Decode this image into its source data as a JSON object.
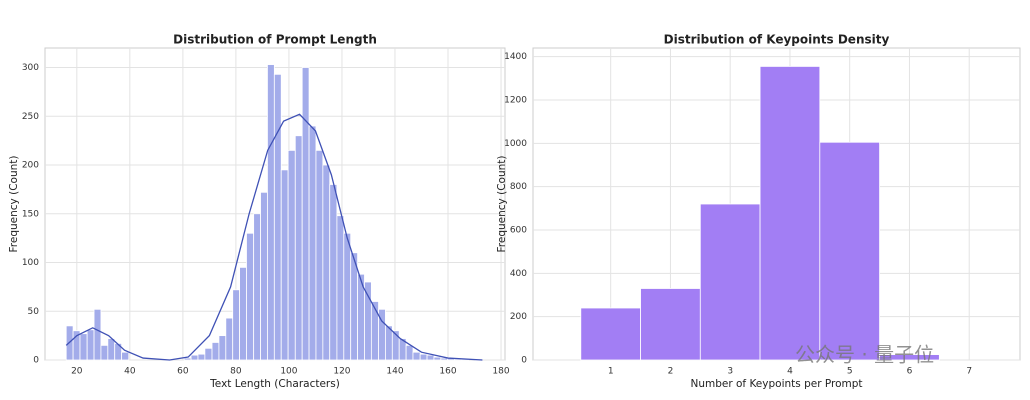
{
  "chart_data": [
    {
      "type": "histogram",
      "title": "Distribution of Prompt Length",
      "xlabel": "Text Length (Characters)",
      "ylabel": "Frequency (Count)",
      "bins": [
        16.0,
        18.6,
        21.2,
        23.9,
        26.5,
        29.1,
        31.7,
        34.3,
        36.9,
        39.6,
        42.2,
        44.8,
        47.4,
        50.0,
        52.6,
        55.3,
        57.9,
        60.5,
        63.1,
        65.7,
        68.3,
        71.0,
        73.6,
        76.2,
        78.8,
        81.4,
        84.0,
        86.7,
        89.3,
        91.9,
        94.5,
        97.1,
        99.7,
        102.4,
        105.0,
        107.6,
        110.2,
        112.8,
        115.4,
        118.1,
        120.7,
        123.3,
        125.9,
        128.5,
        131.1,
        133.8,
        136.4,
        139.0,
        141.6,
        144.2,
        146.8,
        149.5,
        152.1,
        154.7,
        157.3,
        159.9,
        162.5,
        165.2,
        167.8,
        170.4,
        173.0
      ],
      "values": [
        35,
        30,
        27,
        31,
        52,
        15,
        22,
        17,
        8,
        0,
        0,
        0,
        0,
        0,
        0,
        0,
        0,
        2,
        5,
        6,
        12,
        18,
        25,
        43,
        72,
        95,
        130,
        150,
        172,
        303,
        293,
        195,
        215,
        230,
        300,
        240,
        215,
        200,
        180,
        148,
        130,
        110,
        88,
        80,
        60,
        52,
        35,
        30,
        22,
        15,
        8,
        6,
        5,
        3,
        2,
        2,
        1,
        1,
        0,
        1
      ],
      "color": "#a3acea",
      "kde": {
        "color": "#3f51b5",
        "x": [
          16,
          20,
          26,
          32,
          38,
          45,
          55,
          62,
          70,
          78,
          85,
          92,
          98,
          104,
          110,
          116,
          122,
          128,
          135,
          142,
          150,
          160,
          173
        ],
        "values": [
          15,
          25,
          33,
          25,
          10,
          2,
          0,
          3,
          25,
          75,
          150,
          215,
          245,
          252,
          235,
          190,
          125,
          75,
          40,
          22,
          8,
          2,
          0
        ]
      },
      "xlim": [
        8,
        181.5
      ],
      "xticks": [
        20,
        40,
        60,
        80,
        100,
        120,
        140,
        160,
        180
      ],
      "ylim": [
        0,
        320
      ],
      "yticks": [
        0,
        50,
        100,
        150,
        200,
        250,
        300
      ],
      "grid": true
    },
    {
      "type": "histogram",
      "title": "Distribution of Keypoints Density",
      "xlabel": "Number of Keypoints per Prompt",
      "ylabel": "Frequency (Count)",
      "bins": [
        0.5,
        1.5,
        2.5,
        3.5,
        4.5,
        5.5,
        6.5
      ],
      "values": [
        240,
        330,
        720,
        1355,
        1005,
        25
      ],
      "color": "#a27ef4",
      "xlim": [
        -0.3,
        7.85
      ],
      "xticks": [
        1,
        2,
        3,
        4,
        5,
        6,
        7
      ],
      "ylim": [
        0,
        1440
      ],
      "yticks": [
        0,
        200,
        400,
        600,
        800,
        1000,
        1200,
        1400
      ],
      "grid": true
    }
  ],
  "watermark": "公众号 · 量子位"
}
